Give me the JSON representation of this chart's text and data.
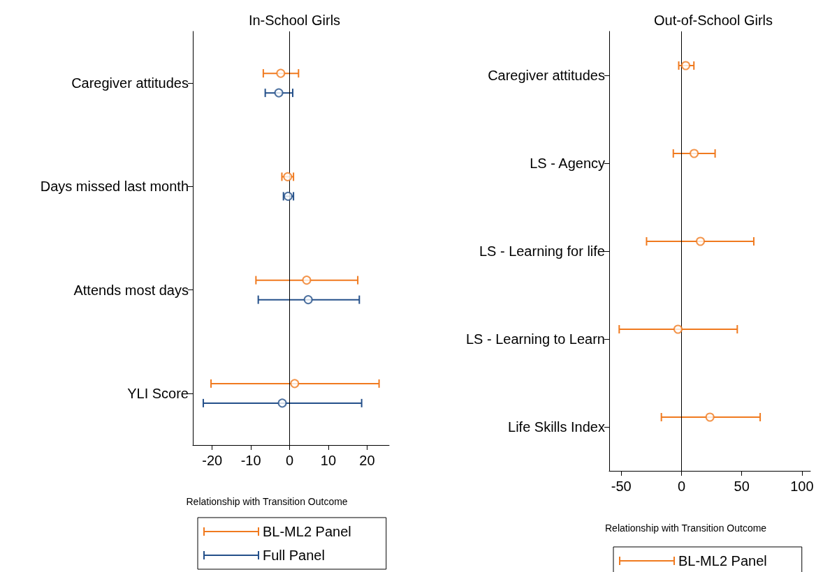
{
  "chart_data": [
    {
      "type": "scatter",
      "orientation": "horizontal",
      "title": "In-School Girls",
      "xlabel": "Relationship with Transition Outcome",
      "categories": [
        "Caregiver attitudes",
        "Days missed last month",
        "Attends most days",
        "YLI Score"
      ],
      "series": [
        {
          "name": "BL-ML2 Panel",
          "color": "#f07a1f",
          "values": [
            -2.3,
            -0.5,
            4.4,
            1.3
          ],
          "errors": [
            [
              -6.8,
              2.3
            ],
            [
              -2.0,
              1.0
            ],
            [
              -8.7,
              17.6
            ],
            [
              -20.3,
              23.1
            ]
          ]
        },
        {
          "name": "Full Panel",
          "color": "#24508a",
          "values": [
            -2.8,
            -0.4,
            4.8,
            -1.9
          ],
          "errors": [
            [
              -6.3,
              0.8
            ],
            [
              -1.6,
              1.0
            ],
            [
              -8.1,
              18.0
            ],
            [
              -22.3,
              18.6
            ]
          ]
        }
      ],
      "xlim": [
        -25,
        25.7
      ],
      "xticks": [
        -20,
        -10,
        0,
        10,
        20
      ],
      "ref_lines": [
        {
          "axis": "x",
          "value": 0,
          "color": "#000000"
        }
      ],
      "marker": "circle",
      "grid": false,
      "legend": "bottom"
    },
    {
      "type": "scatter",
      "orientation": "horizontal",
      "title": "Out-of-School Girls",
      "xlabel": "Relationship with Transition Outcome",
      "categories": [
        "Caregiver attitudes",
        "LS - Agency",
        "LS - Learning for life",
        "LS - Learning to Learn",
        "Life Skills Index"
      ],
      "series": [
        {
          "name": "BL-ML2 Panel",
          "color": "#f07a1f",
          "values": [
            3.5,
            10.5,
            15.7,
            -2.9,
            23.6
          ],
          "errors": [
            [
              -2.3,
              10.3
            ],
            [
              -6.8,
              27.9
            ],
            [
              -29,
              60
            ],
            [
              -51.7,
              46.3
            ],
            [
              -16.7,
              65.3
            ]
          ]
        }
      ],
      "xlim": [
        -60,
        107
      ],
      "xticks": [
        -50,
        0,
        50,
        100
      ],
      "ref_lines": [
        {
          "axis": "x",
          "value": 0,
          "color": "#000000"
        }
      ],
      "marker": "circle",
      "grid": false,
      "legend": "bottom"
    }
  ]
}
